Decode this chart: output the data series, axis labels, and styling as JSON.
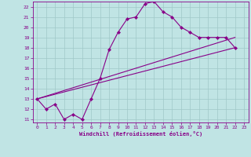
{
  "xlabel": "Windchill (Refroidissement éolien,°C)",
  "xlim": [
    -0.5,
    23.5
  ],
  "ylim": [
    10.7,
    22.5
  ],
  "xticks": [
    0,
    1,
    2,
    3,
    4,
    5,
    6,
    7,
    8,
    9,
    10,
    11,
    12,
    13,
    14,
    15,
    16,
    17,
    18,
    19,
    20,
    21,
    22,
    23
  ],
  "yticks": [
    11,
    12,
    13,
    14,
    15,
    16,
    17,
    18,
    19,
    20,
    21,
    22
  ],
  "bg_color": "#c0e4e4",
  "line_color": "#880088",
  "grid_color": "#a0c8c8",
  "line1_x": [
    0,
    1,
    2,
    3,
    4,
    5,
    6,
    7,
    8,
    9,
    10,
    11,
    12,
    13,
    14,
    15,
    16,
    17,
    18,
    19,
    20,
    21,
    22
  ],
  "line1_y": [
    13.0,
    12.0,
    12.5,
    11.0,
    11.5,
    11.0,
    13.0,
    15.0,
    17.8,
    19.5,
    20.8,
    21.0,
    22.3,
    22.5,
    21.5,
    21.0,
    20.0,
    19.5,
    19.0,
    19.0,
    19.0,
    19.0,
    18.0
  ],
  "line2_x": [
    0,
    22
  ],
  "line2_y": [
    13.0,
    19.0
  ],
  "line3_x": [
    0,
    22
  ],
  "line3_y": [
    13.0,
    18.0
  ]
}
